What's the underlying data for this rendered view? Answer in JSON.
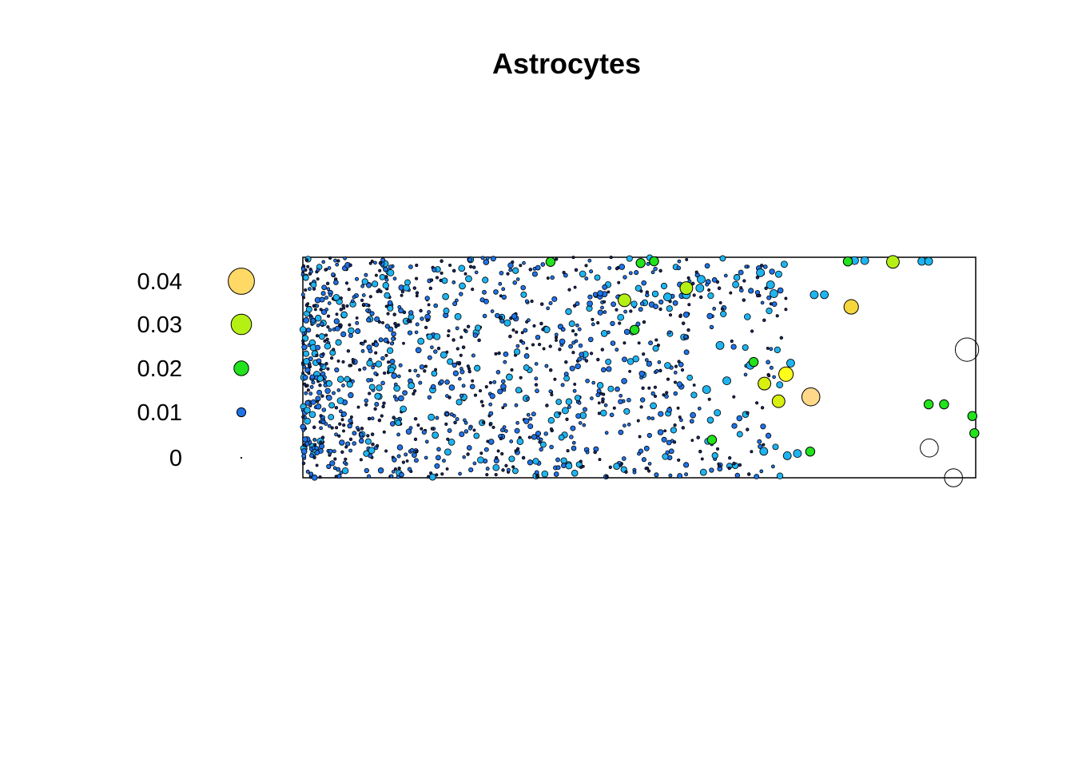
{
  "chart_data": {
    "type": "scatter",
    "title": "Astrocytes",
    "xlabel": "",
    "ylabel": "",
    "encoding": "point size and color scale with value",
    "legend": {
      "placement": "left",
      "entries": [
        {
          "label": "0.04",
          "value": 0.04,
          "color": "#FFD966"
        },
        {
          "label": "0.03",
          "value": 0.03,
          "color": "#B5F015"
        },
        {
          "label": "0.02",
          "value": 0.02,
          "color": "#22E31C"
        },
        {
          "label": "0.01",
          "value": 0.01,
          "color": "#1E73E8"
        },
        {
          "label": "0",
          "value": 0,
          "color": "#000000"
        }
      ]
    },
    "colors": {
      "low": "#1E73E8",
      "mid_low": "#1EB4F0",
      "mid": "#22E31C",
      "mid_high": "#B5F015",
      "high": "#FFFF1A",
      "top": "#FFD88A"
    },
    "highlighted_points": [
      {
        "x": 0.368,
        "y": 0.979,
        "value": 0.02,
        "color": "#22E31C"
      },
      {
        "x": 0.502,
        "y": 0.974,
        "value": 0.02,
        "color": "#22E31C"
      },
      {
        "x": 0.522,
        "y": 0.982,
        "value": 0.02,
        "color": "#22E31C"
      },
      {
        "x": 0.81,
        "y": 0.981,
        "value": 0.02,
        "color": "#22E31C"
      },
      {
        "x": 0.877,
        "y": 0.979,
        "value": 0.03,
        "color": "#B5F015"
      },
      {
        "x": 0.478,
        "y": 0.805,
        "value": 0.03,
        "color": "#B5F015"
      },
      {
        "x": 0.57,
        "y": 0.86,
        "value": 0.03,
        "color": "#B5F015"
      },
      {
        "x": 0.815,
        "y": 0.775,
        "value": 0.035,
        "color": "#F5D63C"
      },
      {
        "x": 0.493,
        "y": 0.671,
        "value": 0.02,
        "color": "#22E31C"
      },
      {
        "x": 0.67,
        "y": 0.525,
        "value": 0.02,
        "color": "#22E31C"
      },
      {
        "x": 0.718,
        "y": 0.47,
        "value": 0.035,
        "color": "#FFFF1A"
      },
      {
        "x": 0.686,
        "y": 0.427,
        "value": 0.03,
        "color": "#D8F010"
      },
      {
        "x": 0.707,
        "y": 0.347,
        "value": 0.03,
        "color": "#D8F010"
      },
      {
        "x": 0.755,
        "y": 0.367,
        "value": 0.045,
        "color": "#FFD88A"
      },
      {
        "x": 0.608,
        "y": 0.172,
        "value": 0.02,
        "color": "#22E31C"
      },
      {
        "x": 0.754,
        "y": 0.119,
        "value": 0.02,
        "color": "#22E31C"
      },
      {
        "x": 0.93,
        "y": 0.333,
        "value": 0.02,
        "color": "#22E31C"
      },
      {
        "x": 0.953,
        "y": 0.333,
        "value": 0.02,
        "color": "#22E31C"
      },
      {
        "x": 0.995,
        "y": 0.28,
        "value": 0.02,
        "color": "#22E31C"
      },
      {
        "x": 0.998,
        "y": 0.202,
        "value": 0.02,
        "color": "#22E31C"
      },
      {
        "x": 0.987,
        "y": 0.581,
        "value": 0.06,
        "color": "none"
      },
      {
        "x": 0.931,
        "y": 0.135,
        "value": 0.045,
        "color": "none"
      },
      {
        "x": 0.967,
        "y": 0.0,
        "value": 0.045,
        "color": "none"
      }
    ],
    "background_points_note": "",
    "xlim": [
      0,
      1
    ],
    "ylim": [
      0,
      1
    ],
    "grid": false
  }
}
